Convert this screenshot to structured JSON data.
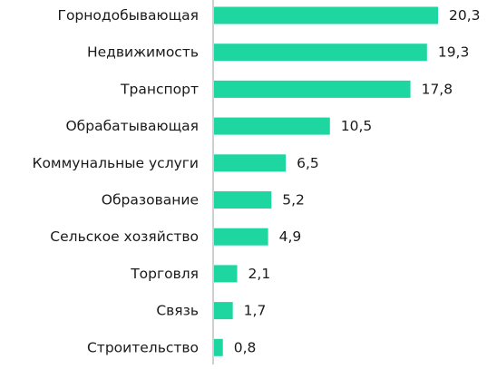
{
  "chart_data": {
    "type": "bar",
    "orientation": "horizontal",
    "categories": [
      "Горнодобывающая",
      "Недвижимость",
      "Транспорт",
      "Обрабатывающая",
      "Коммунальные услуги",
      "Образование",
      "Сельское хозяйство",
      "Торговля",
      "Связь",
      "Строительство"
    ],
    "values": [
      20.3,
      19.3,
      17.8,
      10.5,
      6.5,
      5.2,
      4.9,
      2.1,
      1.7,
      0.8
    ],
    "value_labels": [
      "20,3",
      "19,3",
      "17,8",
      "10,5",
      "6,5",
      "5,2",
      "4,9",
      "2,1",
      "1,7",
      "0,8"
    ],
    "xlim": [
      0,
      22
    ],
    "grid": false,
    "legend": "none",
    "colors": {
      "bar": "#1ed6a0",
      "axis": "#bfbfbf",
      "text": "#1a1a1a"
    }
  }
}
